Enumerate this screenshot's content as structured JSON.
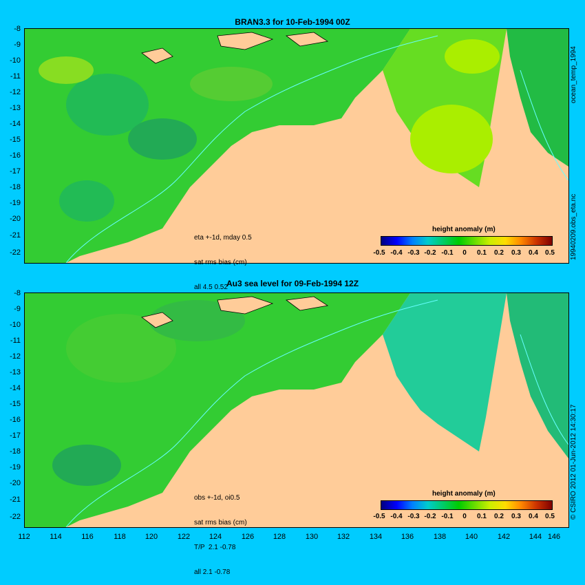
{
  "panels": [
    {
      "title": "BRAN3.3  for 10-Feb-1994 00Z",
      "annotation": [
        "eta +-1d, mday 0.5",
        "sat rms bias (cm)",
        "all 4.5 0.52"
      ],
      "colorbar_title": "height anomaly (m)",
      "side_label": "19940209.obs_eta.nc",
      "side_label_2": "ocean_temp_1994"
    },
    {
      "title": "Au3 sea level  for 09-Feb-1994 12Z",
      "annotation": [
        "obs +-1d, oi0.5",
        "sat rms bias (cm)",
        "T/P  2.1 -0.78",
        "all 2.1 -0.78"
      ],
      "colorbar_title": "height anomaly (m)",
      "side_label": "© CSIRO 2012  01-Jun-2012 14:30:17"
    }
  ],
  "y_ticks": [
    "-8",
    "-9",
    "-10",
    "-11",
    "-12",
    "-13",
    "-14",
    "-15",
    "-16",
    "-17",
    "-18",
    "-19",
    "-20",
    "-21",
    "-22"
  ],
  "x_ticks": [
    "112",
    "114",
    "116",
    "118",
    "120",
    "122",
    "124",
    "126",
    "128",
    "130",
    "132",
    "134",
    "136",
    "138",
    "140",
    "142",
    "144",
    "146"
  ],
  "colorbar_ticks": [
    "-0.5",
    "-0.4",
    "-0.3",
    "-0.2",
    "-0.1",
    "0",
    "0.1",
    "0.2",
    "0.3",
    "0.4",
    "0.5"
  ],
  "colors": {
    "background": "#00ccff",
    "land": "#ffcc99"
  }
}
